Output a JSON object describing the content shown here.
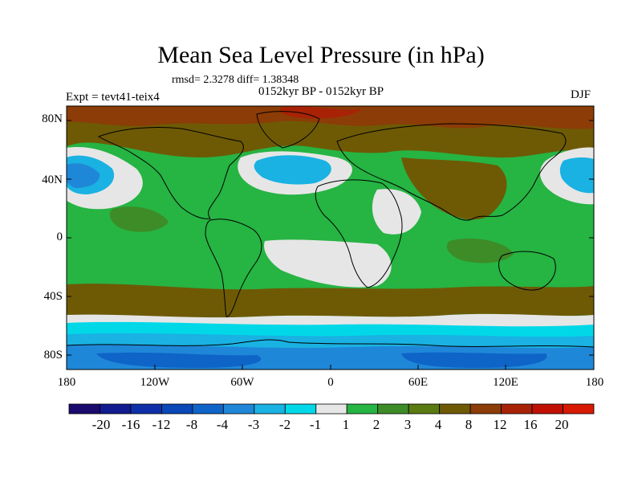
{
  "title": "Mean Sea Level Pressure (in hPa)",
  "stats": "rmsd= 2.3278 diff= 1.38348",
  "periods": "0152kyr BP - 0152kyr BP",
  "experiment": "Expt = tevt41-teix4",
  "season": "DJF",
  "axes": {
    "lat_labels": [
      "80N",
      "40N",
      "0",
      "40S",
      "80S"
    ],
    "lon_labels": [
      "180",
      "120W",
      "60W",
      "0",
      "60E",
      "120E",
      "180"
    ]
  },
  "colorbar": {
    "labels": [
      "-20",
      "-16",
      "-12",
      "-8",
      "-4",
      "-3",
      "-2",
      "-1",
      "1",
      "2",
      "3",
      "4",
      "8",
      "12",
      "16",
      "20"
    ],
    "colors": [
      "#1a0a6e",
      "#111a8e",
      "#0f2fa8",
      "#0a48b8",
      "#0f64c8",
      "#1f87d8",
      "#19b2e2",
      "#00d8e8",
      "#e6e6e6",
      "#26b443",
      "#3d8c27",
      "#5a7a12",
      "#6e5a05",
      "#8c3c06",
      "#a82206",
      "#c01004",
      "#d81a02"
    ]
  },
  "map_colors": {
    "land_outline": "#000000",
    "lt_1": "#e6e6e6",
    "v1_2": "#26b443",
    "v2_3": "#3d8c27",
    "v4_8": "#6e5a05",
    "v8_12": "#8c3c06",
    "v12_16": "#a82206",
    "neg_1": "#00d8e8",
    "neg_2": "#19b2e2",
    "neg_3": "#1f87d8",
    "neg_4": "#0f64c8"
  }
}
